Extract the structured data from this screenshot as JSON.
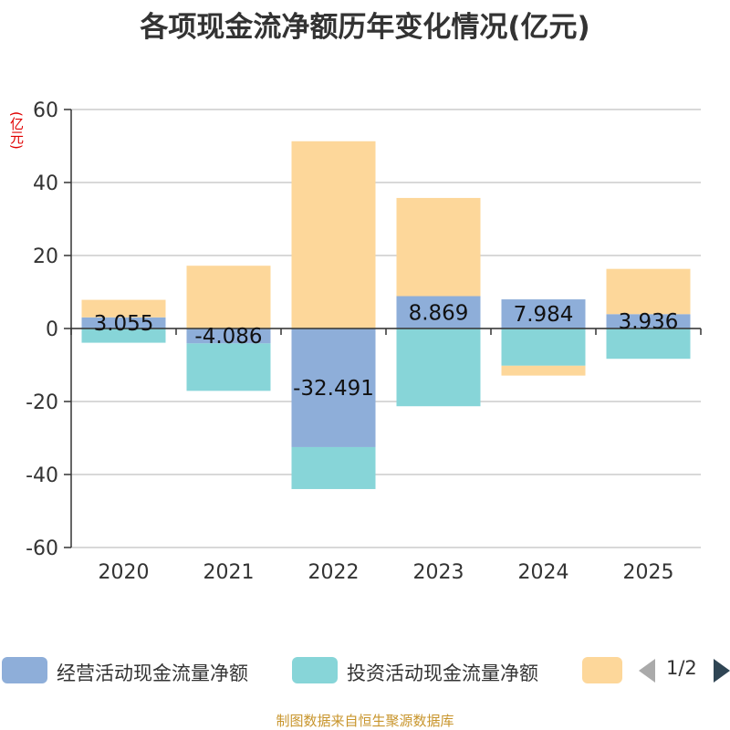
{
  "chart_data": {
    "type": "bar",
    "stacked": true,
    "title": "各项现金流净额历年变化情况(亿元)",
    "ylabel": "(亿元)",
    "xlabel": "",
    "ylim": [
      -60,
      60
    ],
    "yticks": [
      60,
      40,
      20,
      0,
      -20,
      -40,
      -60
    ],
    "categories": [
      "2020",
      "2021",
      "2022",
      "2023",
      "2024",
      "2025"
    ],
    "series": [
      {
        "name": "经营活动现金流量净额",
        "color": "#8eaed9",
        "values": [
          3.055,
          -4.086,
          -32.491,
          8.869,
          7.984,
          3.936
        ],
        "labels": [
          "3.055",
          "-4.086",
          "-32.491",
          "8.869",
          "7.984",
          "3.936"
        ]
      },
      {
        "name": "投资活动现金流量净额",
        "color": "#87d5d8",
        "values": [
          -3.9,
          -13.0,
          -11.5,
          -21.3,
          -10.2,
          -8.3
        ]
      },
      {
        "name": "",
        "color": "#fdd79a",
        "values": [
          4.8,
          17.2,
          51.3,
          26.9,
          -2.7,
          12.4
        ]
      }
    ],
    "grid": true,
    "legend_position": "bottom"
  },
  "legend": {
    "page": "1/2"
  },
  "footer": {
    "source": "制图数据来自恒生聚源数据库"
  }
}
